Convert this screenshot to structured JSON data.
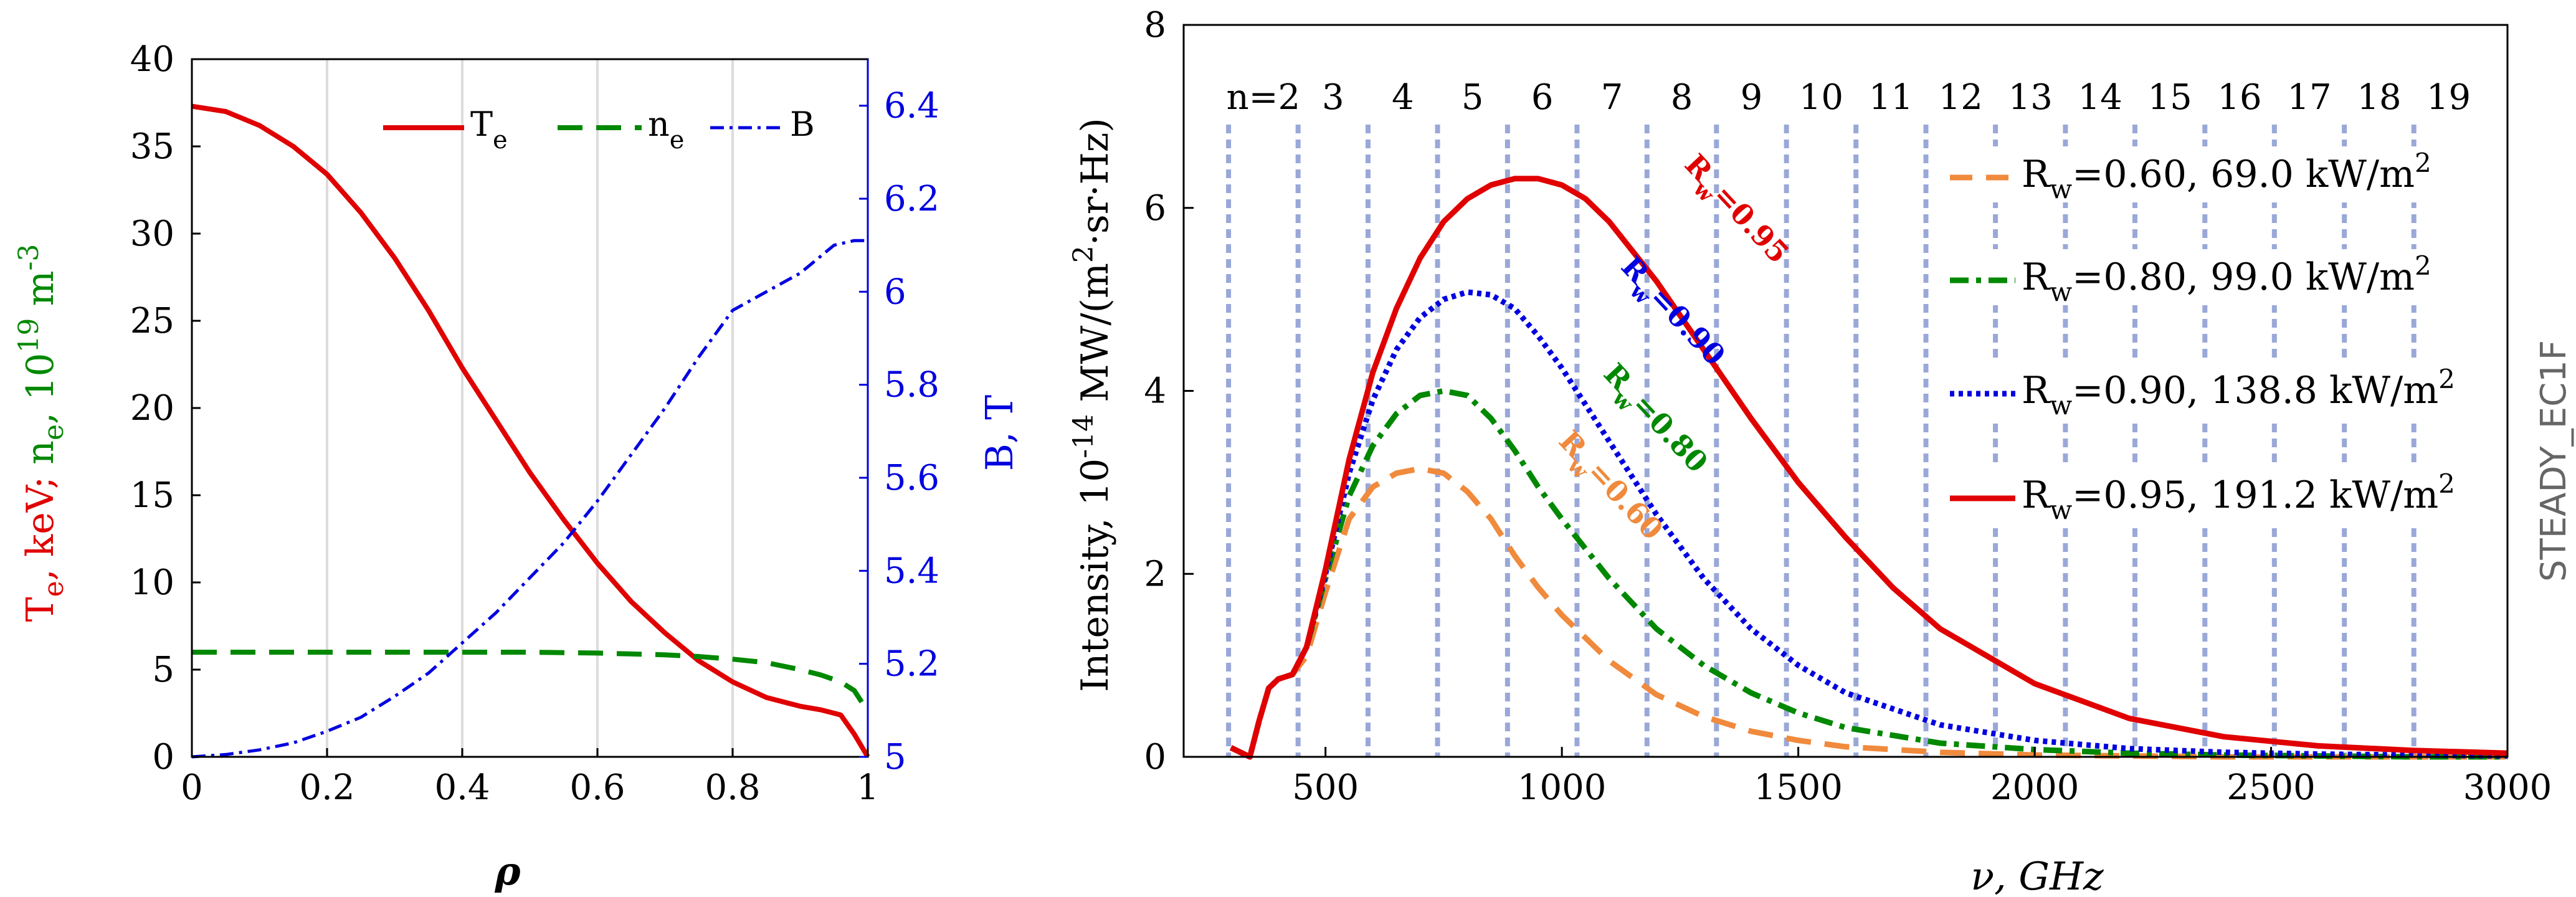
{
  "chart_data": [
    {
      "type": "line",
      "xlabel": "ρ",
      "ylabel_left_parts": [
        "T",
        "e",
        ", keV; ",
        "n",
        "e",
        ", 10",
        "19",
        " m",
        "-3"
      ],
      "ylabel_right": "B, T",
      "xlim": [
        0,
        1
      ],
      "ylim_left": [
        0,
        40
      ],
      "ylim_right": [
        5,
        6.5
      ],
      "x_ticks": [
        "0",
        "0.2",
        "0.4",
        "0.6",
        "0.8",
        "1"
      ],
      "y_ticks_left": [
        "0",
        "5",
        "10",
        "15",
        "20",
        "25",
        "30",
        "35",
        "40"
      ],
      "y_ticks_right": [
        "5",
        "5.2",
        "5.4",
        "5.6",
        "5.8",
        "6",
        "6.2",
        "6.4"
      ],
      "grid": "vertical",
      "legend_placement": "top",
      "legend": [
        {
          "main": "T",
          "sub": "e"
        },
        {
          "main": "n",
          "sub": "e"
        },
        {
          "main": "B",
          "sub": ""
        }
      ],
      "series": [
        {
          "name": "Te",
          "axis": "left",
          "color": "#e00000",
          "dash": "solid",
          "x": [
            0,
            0.05,
            0.1,
            0.15,
            0.2,
            0.25,
            0.3,
            0.35,
            0.4,
            0.45,
            0.5,
            0.55,
            0.6,
            0.65,
            0.7,
            0.75,
            0.8,
            0.85,
            0.9,
            0.93,
            0.96,
            0.98,
            1.0
          ],
          "y": [
            37.3,
            37.0,
            36.2,
            35.0,
            33.4,
            31.2,
            28.6,
            25.6,
            22.3,
            19.3,
            16.3,
            13.6,
            11.1,
            8.9,
            7.1,
            5.5,
            4.3,
            3.4,
            2.9,
            2.7,
            2.4,
            1.3,
            0.0
          ]
        },
        {
          "name": "ne",
          "axis": "left",
          "color": "#008800",
          "dash": "long",
          "x": [
            0,
            0.1,
            0.2,
            0.3,
            0.4,
            0.5,
            0.6,
            0.7,
            0.75,
            0.8,
            0.85,
            0.9,
            0.93,
            0.96,
            0.98,
            1.0
          ],
          "y": [
            6.0,
            6.0,
            6.0,
            6.0,
            6.0,
            6.0,
            5.95,
            5.85,
            5.75,
            5.6,
            5.4,
            5.0,
            4.7,
            4.3,
            3.8,
            2.6
          ]
        },
        {
          "name": "B",
          "axis": "right",
          "color": "#0000e0",
          "dash": "dashdot",
          "x": [
            0,
            0.05,
            0.1,
            0.15,
            0.2,
            0.25,
            0.3,
            0.35,
            0.4,
            0.45,
            0.5,
            0.55,
            0.6,
            0.65,
            0.7,
            0.75,
            0.8,
            0.85,
            0.9,
            0.95,
            0.98,
            1.0
          ],
          "y": [
            5.0,
            5.005,
            5.015,
            5.03,
            5.055,
            5.085,
            5.13,
            5.18,
            5.245,
            5.31,
            5.385,
            5.46,
            5.55,
            5.65,
            5.75,
            5.86,
            5.96,
            6.0,
            6.04,
            6.1,
            6.11,
            6.11
          ]
        }
      ]
    },
    {
      "type": "line",
      "xlabel": "ν, GHz",
      "ylabel_parts": [
        "Intensity, 10",
        "-14",
        " MW/(m",
        "2",
        "·sr·Hz)"
      ],
      "xlim": [
        200,
        3000
      ],
      "ylim": [
        0,
        8
      ],
      "x_ticks": [
        "500",
        "1000",
        "1500",
        "2000",
        "2500",
        "3000"
      ],
      "y_ticks": [
        "0",
        "2",
        "4",
        "6",
        "8"
      ],
      "harmonics": {
        "labels": [
          "n=2",
          "3",
          "4",
          "5",
          "6",
          "7",
          "8",
          "9",
          "10",
          "11",
          "12",
          "13",
          "14",
          "15",
          "16",
          "17",
          "18",
          "19"
        ],
        "frequencies": [
          295,
          442,
          590,
          737,
          885,
          1032,
          1180,
          1327,
          1475,
          1622,
          1770,
          1917,
          2065,
          2212,
          2360,
          2507,
          2655,
          2802
        ],
        "color": "#9aa8d8"
      },
      "legend_placement": "right",
      "legend": [
        {
          "rw": "0.60",
          "power": "69.0 kW/m",
          "exp": "2"
        },
        {
          "rw": "0.80",
          "power": "99.0 kW/m",
          "exp": "2"
        },
        {
          "rw": "0.90",
          "power": "138.8 kW/m",
          "exp": "2"
        },
        {
          "rw": "0.95",
          "power": "191.2 kW/m",
          "exp": "2"
        }
      ],
      "curve_labels": [
        "=0.60",
        "=0.80",
        "=0.90",
        "=0.95"
      ],
      "watermark": "STEADY_EC1F",
      "series": [
        {
          "name": "Rw=0.60",
          "color": "#f08a3c",
          "dash": "long",
          "x": [
            300,
            320,
            340,
            360,
            380,
            400,
            430,
            460,
            500,
            550,
            600,
            650,
            700,
            750,
            800,
            850,
            900,
            950,
            1000,
            1100,
            1200,
            1300,
            1400,
            1500,
            1600,
            1800,
            2000,
            2200,
            2400,
            2600,
            2800,
            3000
          ],
          "y": [
            0.1,
            0.05,
            0.0,
            0.4,
            0.75,
            0.85,
            0.9,
            1.1,
            1.8,
            2.6,
            2.95,
            3.1,
            3.15,
            3.1,
            2.9,
            2.6,
            2.2,
            1.85,
            1.55,
            1.05,
            0.68,
            0.44,
            0.28,
            0.18,
            0.11,
            0.05,
            0.02,
            0.01,
            0.0,
            0.0,
            0.0,
            0.0
          ]
        },
        {
          "name": "Rw=0.80",
          "color": "#008800",
          "dash": "dashdot",
          "x": [
            300,
            320,
            340,
            360,
            380,
            400,
            430,
            460,
            500,
            550,
            600,
            650,
            700,
            750,
            800,
            850,
            900,
            950,
            1000,
            1100,
            1200,
            1300,
            1400,
            1500,
            1600,
            1800,
            2000,
            2200,
            2400,
            2600,
            2800,
            3000
          ],
          "y": [
            0.1,
            0.05,
            0.0,
            0.4,
            0.75,
            0.85,
            0.9,
            1.2,
            1.95,
            2.85,
            3.4,
            3.75,
            3.95,
            4.0,
            3.95,
            3.7,
            3.35,
            2.95,
            2.6,
            1.95,
            1.4,
            1.0,
            0.7,
            0.48,
            0.32,
            0.15,
            0.08,
            0.04,
            0.02,
            0.01,
            0.0,
            0.0
          ]
        },
        {
          "name": "Rw=0.90",
          "color": "#0000e0",
          "dash": "dot",
          "x": [
            300,
            320,
            340,
            360,
            380,
            400,
            430,
            460,
            500,
            550,
            600,
            650,
            700,
            750,
            800,
            850,
            900,
            950,
            1000,
            1100,
            1200,
            1300,
            1400,
            1500,
            1600,
            1800,
            2000,
            2200,
            2400,
            2600,
            2800,
            3000
          ],
          "y": [
            0.1,
            0.05,
            0.0,
            0.4,
            0.75,
            0.85,
            0.9,
            1.2,
            2.0,
            3.1,
            3.9,
            4.45,
            4.8,
            5.0,
            5.08,
            5.05,
            4.9,
            4.6,
            4.25,
            3.45,
            2.65,
            1.95,
            1.4,
            1.0,
            0.7,
            0.35,
            0.18,
            0.09,
            0.05,
            0.03,
            0.02,
            0.01
          ]
        },
        {
          "name": "Rw=0.95",
          "color": "#e00000",
          "dash": "solid",
          "x": [
            300,
            320,
            340,
            360,
            380,
            400,
            430,
            460,
            500,
            550,
            600,
            650,
            700,
            750,
            800,
            850,
            900,
            950,
            1000,
            1050,
            1100,
            1200,
            1300,
            1400,
            1500,
            1600,
            1700,
            1800,
            2000,
            2200,
            2400,
            2600,
            2800,
            3000
          ],
          "y": [
            0.1,
            0.05,
            0.0,
            0.4,
            0.75,
            0.85,
            0.9,
            1.2,
            2.05,
            3.25,
            4.2,
            4.9,
            5.45,
            5.85,
            6.1,
            6.25,
            6.32,
            6.32,
            6.25,
            6.1,
            5.85,
            5.2,
            4.45,
            3.7,
            3.0,
            2.4,
            1.85,
            1.4,
            0.8,
            0.42,
            0.22,
            0.12,
            0.07,
            0.04
          ]
        }
      ]
    }
  ]
}
